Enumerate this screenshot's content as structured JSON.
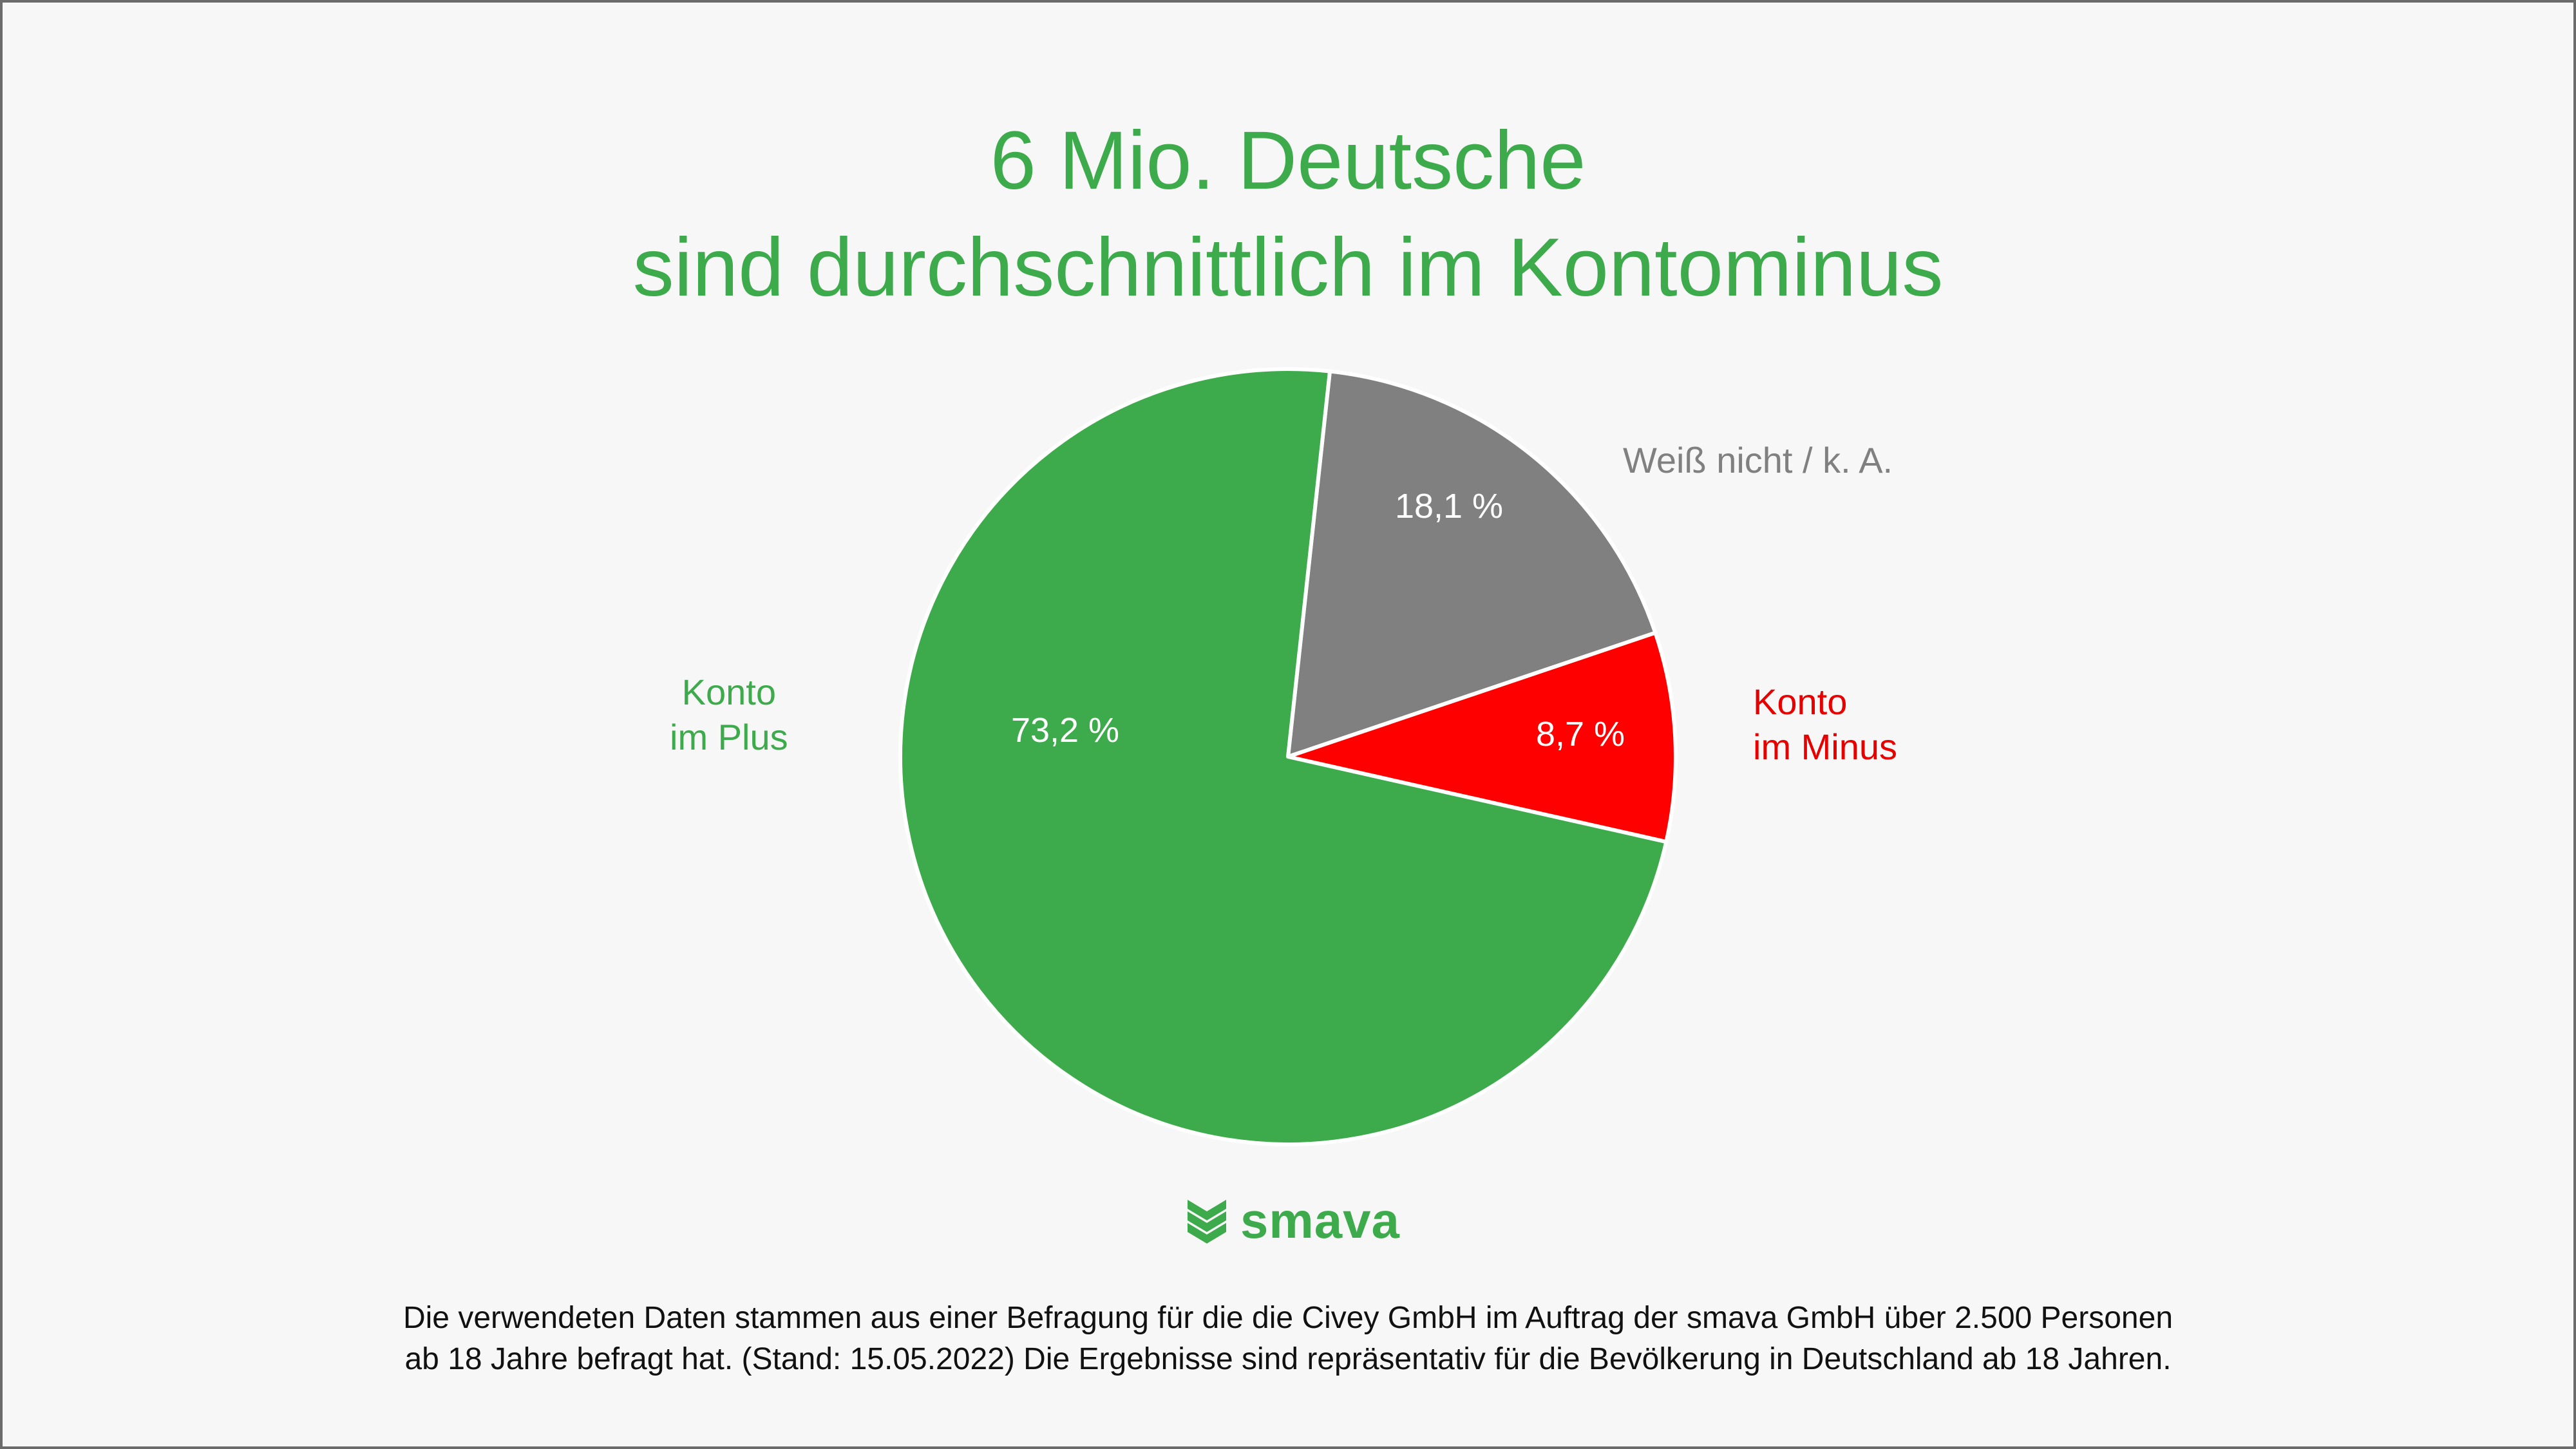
{
  "title": {
    "line1": "6 Mio. Deutsche",
    "line2": "sind durchschnittlich im Kontominus"
  },
  "chart_data": {
    "type": "pie",
    "title": "6 Mio. Deutsche sind durchschnittlich im Kontominus",
    "slices": [
      {
        "key": "weiss",
        "label_lines": [
          "Weiß nicht / k. A."
        ],
        "value": 18.1,
        "value_label": "18,1 %",
        "color": "#808080",
        "label_color": "#808080"
      },
      {
        "key": "minus",
        "label_lines": [
          "Konto",
          "im Minus"
        ],
        "value": 8.7,
        "value_label": "8,7 %",
        "color": "#ff0000",
        "label_color": "#e60000"
      },
      {
        "key": "plus",
        "label_lines": [
          "Konto",
          "im Plus"
        ],
        "value": 73.2,
        "value_label": "73,2 %",
        "color": "#3daa4b",
        "label_color": "#3daa4b"
      }
    ],
    "legend": "none"
  },
  "logo": {
    "text": "smava",
    "color": "#3daa4b"
  },
  "footnote": {
    "line1": "Die verwendeten Daten stammen aus einer Befragung für die die Civey GmbH im Auftrag der smava GmbH über 2.500 Personen",
    "line2": "ab 18 Jahre befragt hat. (Stand: 15.05.2022) Die Ergebnisse sind repräsentativ für die Bevölkerung in Deutschland ab 18 Jahren."
  }
}
